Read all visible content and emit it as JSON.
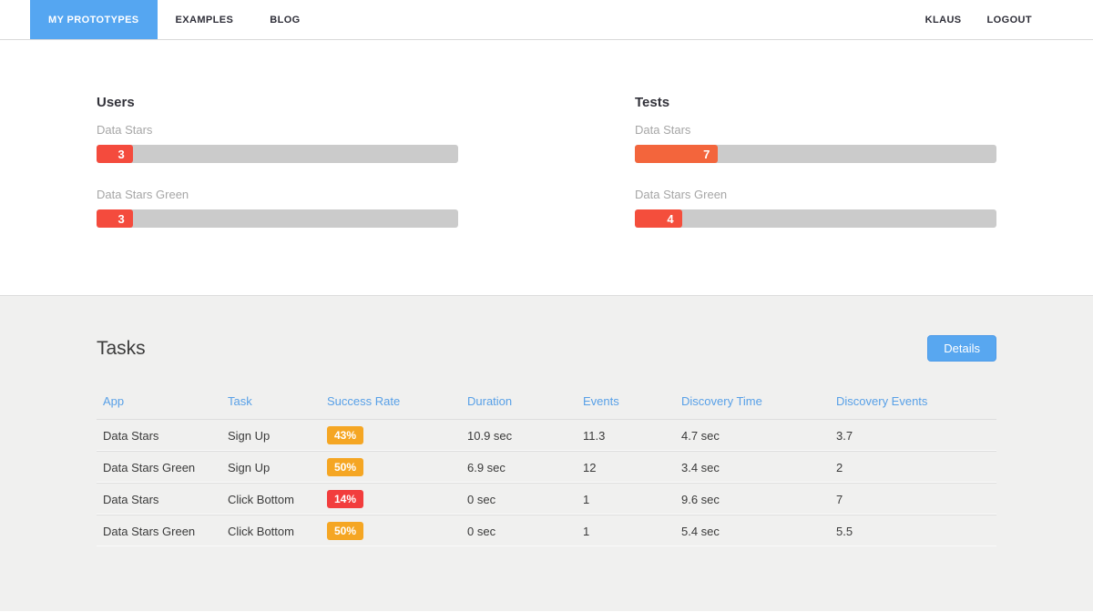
{
  "nav": {
    "tabs": [
      {
        "label": "MY PROTOTYPES",
        "active": true
      },
      {
        "label": "EXAMPLES",
        "active": false
      },
      {
        "label": "BLOG",
        "active": false
      }
    ],
    "right": [
      {
        "label": "KLAUS"
      },
      {
        "label": "LOGOUT"
      }
    ]
  },
  "stats": {
    "columns": [
      {
        "title": "Users",
        "bars": [
          {
            "label": "Data Stars",
            "value": "3",
            "fill_pct": 10,
            "color": "#f44b3d"
          },
          {
            "label": "Data Stars Green",
            "value": "3",
            "fill_pct": 10,
            "color": "#f44b3d"
          }
        ]
      },
      {
        "title": "Tests",
        "bars": [
          {
            "label": "Data Stars",
            "value": "7",
            "fill_pct": 23,
            "color": "#f3653c"
          },
          {
            "label": "Data Stars Green",
            "value": "4",
            "fill_pct": 13,
            "color": "#f44e3c"
          }
        ]
      }
    ]
  },
  "tasks": {
    "title": "Tasks",
    "details_button": "Details",
    "table": {
      "headers": [
        "App",
        "Task",
        "Success Rate",
        "Duration",
        "Events",
        "Discovery Time",
        "Discovery Events"
      ],
      "rows": [
        {
          "app": "Data Stars",
          "task": "Sign Up",
          "success_rate": "43%",
          "success_color": "#f5a623",
          "duration": "10.9 sec",
          "events": "11.3",
          "discovery_time": "4.7 sec",
          "discovery_events": "3.7"
        },
        {
          "app": "Data Stars Green",
          "task": "Sign Up",
          "success_rate": "50%",
          "success_color": "#f5a623",
          "duration": "6.9 sec",
          "events": "12",
          "discovery_time": "3.4 sec",
          "discovery_events": "2"
        },
        {
          "app": "Data Stars",
          "task": "Click Bottom",
          "success_rate": "14%",
          "success_color": "#f23d3d",
          "duration": "0 sec",
          "events": "1",
          "discovery_time": "9.6 sec",
          "discovery_events": "7"
        },
        {
          "app": "Data Stars Green",
          "task": "Click Bottom",
          "success_rate": "50%",
          "success_color": "#f5a623",
          "duration": "0 sec",
          "events": "1",
          "discovery_time": "5.4 sec",
          "discovery_events": "5.5"
        }
      ]
    }
  },
  "colors": {
    "accent_blue": "#55a6f1",
    "header_link_blue": "#58a0e7",
    "bar_track_gray": "#cbcbcb",
    "badge_orange": "#f5a623",
    "badge_red": "#f23d3d",
    "section_gray": "#f0f0ef"
  }
}
